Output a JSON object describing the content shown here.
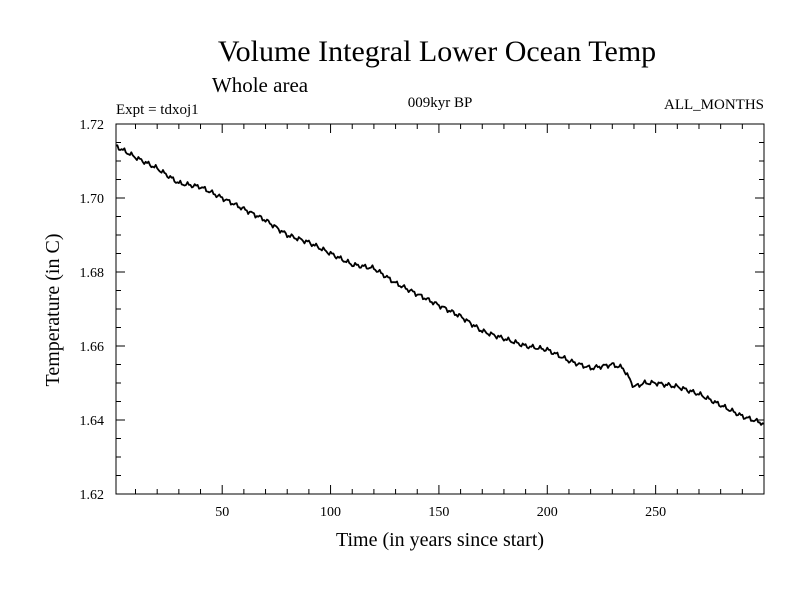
{
  "chart_data": {
    "type": "line",
    "title": "Volume Integral Lower Ocean Temp",
    "subtitle": "Whole area",
    "experiment": "Expt = tdxoj1",
    "period": "009kyr BP",
    "months": "ALL_MONTHS",
    "xlabel": "Time (in years since start)",
    "ylabel": "Temperature (in C)",
    "xlim": [
      1,
      300
    ],
    "ylim": [
      1.62,
      1.72
    ],
    "x_ticks": [
      50,
      100,
      150,
      200,
      250
    ],
    "x_tick_labels": [
      "50",
      "100",
      "150",
      "200",
      "250"
    ],
    "y_ticks": [
      1.62,
      1.64,
      1.66,
      1.68,
      1.7,
      1.72
    ],
    "y_tick_labels": [
      "1.62",
      "1.64",
      "1.66",
      "1.68",
      "1.70",
      "1.72"
    ],
    "grid": false,
    "series": [
      {
        "name": "Temperature",
        "x": [
          1,
          10,
          20,
          30,
          40,
          50,
          60,
          70,
          80,
          90,
          100,
          110,
          120,
          130,
          140,
          150,
          160,
          170,
          180,
          190,
          200,
          210,
          220,
          230,
          235,
          240,
          245,
          250,
          260,
          270,
          280,
          290,
          300
        ],
        "values": [
          1.714,
          1.711,
          1.708,
          1.704,
          1.703,
          1.7,
          1.697,
          1.694,
          1.69,
          1.688,
          1.685,
          1.682,
          1.681,
          1.677,
          1.674,
          1.671,
          1.668,
          1.664,
          1.662,
          1.66,
          1.659,
          1.656,
          1.654,
          1.655,
          1.654,
          1.649,
          1.65,
          1.65,
          1.649,
          1.647,
          1.644,
          1.641,
          1.639
        ]
      }
    ]
  }
}
